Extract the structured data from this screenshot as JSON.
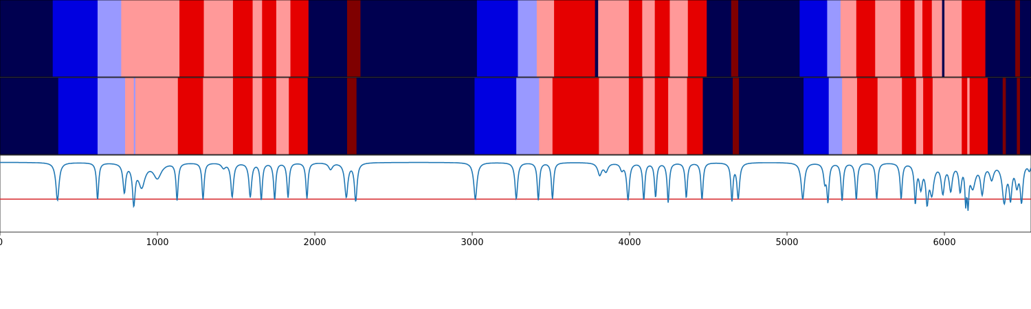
{
  "colors": {
    "s0": "#000050",
    "s1": "#0000e0",
    "s2": "#9999ff",
    "s3": "#ff9999",
    "s4": "#e50000",
    "s5": "#7f0000",
    "line": "#1f77b4",
    "threshold": "#d62728"
  },
  "chart_data": {
    "type": "line",
    "xlim": [
      0,
      6550
    ],
    "xticks": [
      0,
      1000,
      2000,
      3000,
      4000,
      5000,
      6000
    ],
    "tick_labels": [
      "0",
      "1000",
      "2000",
      "3000",
      "4000",
      "5000",
      "6000"
    ],
    "state_rows": [
      {
        "segments": [
          [
            0,
            335,
            "s0"
          ],
          [
            335,
            620,
            "s1"
          ],
          [
            620,
            770,
            "s2"
          ],
          [
            770,
            1140,
            "s3"
          ],
          [
            1140,
            1295,
            "s4"
          ],
          [
            1295,
            1480,
            "s3"
          ],
          [
            1480,
            1605,
            "s4"
          ],
          [
            1605,
            1665,
            "s3"
          ],
          [
            1665,
            1755,
            "s4"
          ],
          [
            1755,
            1845,
            "s3"
          ],
          [
            1845,
            1960,
            "s4"
          ],
          [
            1960,
            2205,
            "s0"
          ],
          [
            2205,
            2290,
            "s5"
          ],
          [
            2290,
            3030,
            "s0"
          ],
          [
            3030,
            3290,
            "s1"
          ],
          [
            3290,
            3410,
            "s2"
          ],
          [
            3410,
            3520,
            "s3"
          ],
          [
            3520,
            3780,
            "s4"
          ],
          [
            3780,
            3800,
            "s0"
          ],
          [
            3800,
            3995,
            "s3"
          ],
          [
            3995,
            4080,
            "s4"
          ],
          [
            4080,
            4160,
            "s3"
          ],
          [
            4160,
            4255,
            "s4"
          ],
          [
            4255,
            4370,
            "s3"
          ],
          [
            4370,
            4490,
            "s4"
          ],
          [
            4490,
            4645,
            "s0"
          ],
          [
            4645,
            4690,
            "s5"
          ],
          [
            4690,
            5080,
            "s0"
          ],
          [
            5080,
            5255,
            "s1"
          ],
          [
            5255,
            5340,
            "s2"
          ],
          [
            5340,
            5440,
            "s3"
          ],
          [
            5440,
            5560,
            "s4"
          ],
          [
            5560,
            5720,
            "s3"
          ],
          [
            5720,
            5810,
            "s4"
          ],
          [
            5810,
            5860,
            "s3"
          ],
          [
            5860,
            5920,
            "s4"
          ],
          [
            5920,
            5985,
            "s3"
          ],
          [
            5985,
            6000,
            "s0"
          ],
          [
            6000,
            6110,
            "s3"
          ],
          [
            6110,
            6260,
            "s4"
          ],
          [
            6260,
            6450,
            "s0"
          ],
          [
            6450,
            6480,
            "s5"
          ],
          [
            6480,
            6550,
            "s0"
          ]
        ]
      },
      {
        "segments": [
          [
            0,
            370,
            "s0"
          ],
          [
            370,
            620,
            "s1"
          ],
          [
            620,
            795,
            "s2"
          ],
          [
            795,
            850,
            "s3"
          ],
          [
            850,
            860,
            "s2"
          ],
          [
            860,
            1130,
            "s3"
          ],
          [
            1130,
            1290,
            "s4"
          ],
          [
            1290,
            1480,
            "s3"
          ],
          [
            1480,
            1605,
            "s4"
          ],
          [
            1605,
            1665,
            "s3"
          ],
          [
            1665,
            1755,
            "s4"
          ],
          [
            1755,
            1835,
            "s3"
          ],
          [
            1835,
            1955,
            "s4"
          ],
          [
            1955,
            2205,
            "s0"
          ],
          [
            2205,
            2265,
            "s5"
          ],
          [
            2265,
            3015,
            "s0"
          ],
          [
            3015,
            3280,
            "s1"
          ],
          [
            3280,
            3425,
            "s2"
          ],
          [
            3425,
            3510,
            "s3"
          ],
          [
            3510,
            3805,
            "s4"
          ],
          [
            3805,
            3995,
            "s3"
          ],
          [
            3995,
            4085,
            "s4"
          ],
          [
            4085,
            4160,
            "s3"
          ],
          [
            4160,
            4245,
            "s4"
          ],
          [
            4245,
            4365,
            "s3"
          ],
          [
            4365,
            4465,
            "s4"
          ],
          [
            4465,
            4655,
            "s0"
          ],
          [
            4655,
            4695,
            "s5"
          ],
          [
            4695,
            5105,
            "s0"
          ],
          [
            5105,
            5265,
            "s1"
          ],
          [
            5265,
            5350,
            "s2"
          ],
          [
            5350,
            5445,
            "s3"
          ],
          [
            5445,
            5575,
            "s4"
          ],
          [
            5575,
            5730,
            "s3"
          ],
          [
            5730,
            5820,
            "s4"
          ],
          [
            5820,
            5865,
            "s3"
          ],
          [
            5865,
            5925,
            "s4"
          ],
          [
            5925,
            6110,
            "s3"
          ],
          [
            6110,
            6145,
            "s4"
          ],
          [
            6145,
            6160,
            "s3"
          ],
          [
            6160,
            6275,
            "s4"
          ],
          [
            6275,
            6370,
            "s0"
          ],
          [
            6370,
            6390,
            "s5"
          ],
          [
            6390,
            6460,
            "s0"
          ],
          [
            6460,
            6480,
            "s5"
          ],
          [
            6480,
            6550,
            "s0"
          ]
        ]
      }
    ],
    "signal": {
      "baseline": 0.97,
      "threshold": 0.3,
      "ylim": [
        -0.3,
        1.1
      ],
      "dips": [
        [
          365,
          0.28,
          12
        ],
        [
          620,
          0.3,
          8
        ],
        [
          790,
          0.45,
          10
        ],
        [
          850,
          0.27,
          10
        ],
        [
          900,
          0.55,
          25
        ],
        [
          1000,
          0.7,
          30
        ],
        [
          1125,
          0.3,
          8
        ],
        [
          1290,
          0.3,
          8
        ],
        [
          1420,
          0.88,
          15
        ],
        [
          1475,
          0.35,
          10
        ],
        [
          1590,
          0.35,
          10
        ],
        [
          1660,
          0.3,
          8
        ],
        [
          1745,
          0.3,
          8
        ],
        [
          1830,
          0.34,
          8
        ],
        [
          1950,
          0.32,
          8
        ],
        [
          2100,
          0.85,
          15
        ],
        [
          2200,
          0.35,
          12
        ],
        [
          2260,
          0.28,
          10
        ],
        [
          3020,
          0.3,
          12
        ],
        [
          3280,
          0.31,
          10
        ],
        [
          3420,
          0.29,
          8
        ],
        [
          3510,
          0.31,
          8
        ],
        [
          3810,
          0.75,
          15
        ],
        [
          3850,
          0.82,
          15
        ],
        [
          3950,
          0.85,
          12
        ],
        [
          3990,
          0.3,
          10
        ],
        [
          4090,
          0.3,
          8
        ],
        [
          4165,
          0.35,
          8
        ],
        [
          4245,
          0.25,
          8
        ],
        [
          4360,
          0.33,
          8
        ],
        [
          4460,
          0.3,
          8
        ],
        [
          4650,
          0.3,
          8
        ],
        [
          4690,
          0.33,
          10
        ],
        [
          5100,
          0.3,
          12
        ],
        [
          5240,
          0.65,
          10
        ],
        [
          5260,
          0.3,
          8
        ],
        [
          5350,
          0.28,
          8
        ],
        [
          5440,
          0.3,
          8
        ],
        [
          5570,
          0.31,
          8
        ],
        [
          5725,
          0.32,
          8
        ],
        [
          5815,
          0.28,
          8
        ],
        [
          5850,
          0.55,
          12
        ],
        [
          5890,
          0.33,
          10
        ],
        [
          5920,
          0.45,
          15
        ],
        [
          5990,
          0.45,
          12
        ],
        [
          6040,
          0.5,
          12
        ],
        [
          6100,
          0.5,
          10
        ],
        [
          6135,
          0.35,
          6
        ],
        [
          6150,
          0.35,
          6
        ],
        [
          6180,
          0.55,
          20
        ],
        [
          6240,
          0.45,
          12
        ],
        [
          6300,
          0.7,
          15
        ],
        [
          6380,
          0.28,
          15
        ],
        [
          6420,
          0.38,
          10
        ],
        [
          6460,
          0.6,
          12
        ],
        [
          6490,
          0.3,
          10
        ],
        [
          6540,
          0.85,
          10
        ]
      ]
    }
  }
}
